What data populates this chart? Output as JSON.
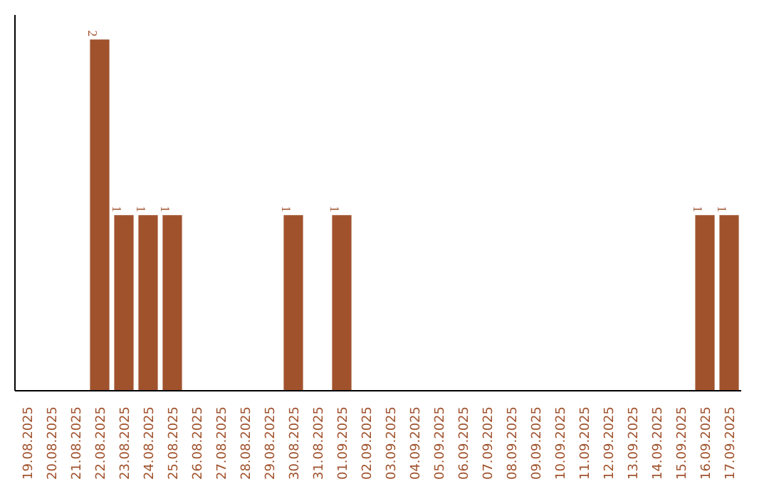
{
  "chart_data": {
    "type": "bar",
    "categories": [
      "19.08.2025",
      "20.08.2025",
      "21.08.2025",
      "22.08.2025",
      "23.08.2025",
      "24.08.2025",
      "25.08.2025",
      "26.08.2025",
      "27.08.2025",
      "28.08.2025",
      "29.08.2025",
      "30.08.2025",
      "31.08.2025",
      "01.09.2025",
      "02.09.2025",
      "03.09.2025",
      "04.09.2025",
      "05.09.2025",
      "06.09.2025",
      "07.09.2025",
      "08.09.2025",
      "09.09.2025",
      "10.09.2025",
      "11.09.2025",
      "12.09.2025",
      "13.09.2025",
      "14.09.2025",
      "15.09.2025",
      "16.09.2025",
      "17.09.2025"
    ],
    "values": [
      0,
      0,
      0,
      2,
      1,
      1,
      1,
      0,
      0,
      0,
      0,
      1,
      0,
      1,
      0,
      0,
      0,
      0,
      0,
      0,
      0,
      0,
      0,
      0,
      0,
      0,
      0,
      0,
      1,
      1
    ],
    "value_labels": [
      null,
      null,
      null,
      "2",
      "1",
      "1",
      "1",
      null,
      null,
      null,
      null,
      "1",
      null,
      "1",
      null,
      null,
      null,
      null,
      null,
      null,
      null,
      null,
      null,
      null,
      null,
      null,
      null,
      null,
      "1",
      "1"
    ],
    "color": "#a0522d",
    "tick_labels": "x",
    "grid": false
  }
}
